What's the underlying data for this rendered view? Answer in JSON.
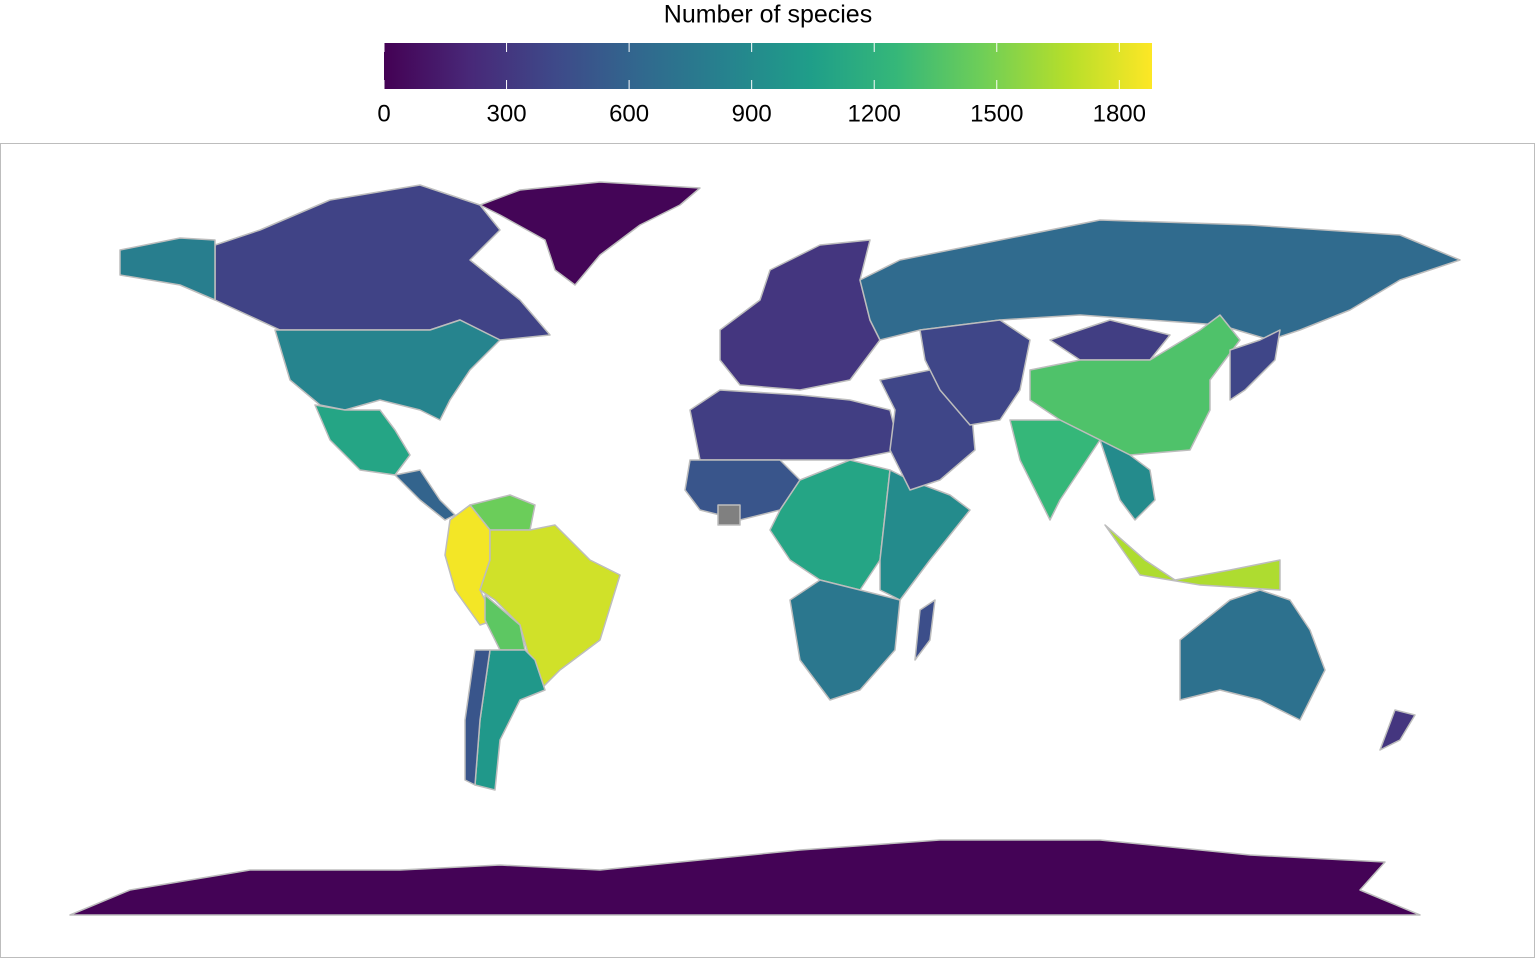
{
  "chart_data": {
    "type": "choropleth",
    "title": "Number of species",
    "colormap": "viridis",
    "missing_color": "#808080",
    "border_color": "#bdbdbd",
    "clim": [
      0,
      1880
    ],
    "cticks": [
      0,
      300,
      600,
      900,
      1200,
      1500,
      1800
    ],
    "values": [
      20,
      380,
      800,
      850,
      1100,
      600,
      1450,
      1850,
      1750,
      1400,
      1000,
      500,
      300,
      650,
      350,
      500,
      null,
      1100,
      900,
      750,
      450,
      400,
      400,
      350,
      1350,
      1250,
      900,
      1650,
      400,
      700,
      300,
      10
    ]
  }
}
